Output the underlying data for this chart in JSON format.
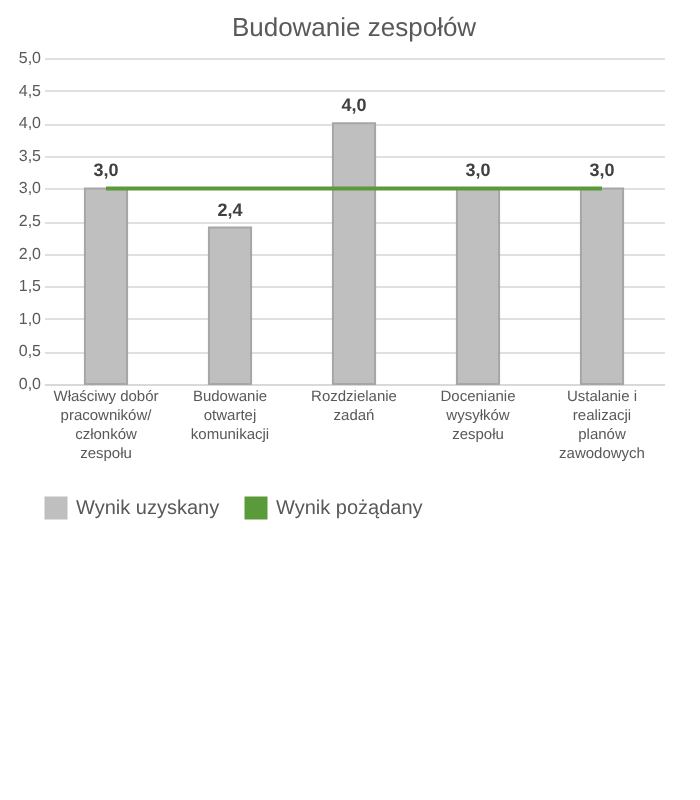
{
  "chart_data": {
    "type": "bar",
    "title": "Budowanie zespołów",
    "categories": [
      "Właściwy dobór pracowników/ członków zespołu",
      "Budowanie otwartej komunikacji",
      "Rozdzielanie zadań",
      "Docenianie wysyłków zespołu",
      "Ustalanie i realizacji planów zawodowych"
    ],
    "series": [
      {
        "name": "Wynik uzyskany",
        "color": "#bfbfbf",
        "values": [
          3.0,
          2.4,
          4.0,
          3.0,
          3.0
        ],
        "value_labels": [
          "3,0",
          "2,4",
          "4,0",
          "3,0",
          "3,0"
        ]
      },
      {
        "name": "Wynik pożądany",
        "type": "line",
        "color": "#5b9a3a",
        "values": [
          3.0,
          3.0,
          3.0,
          3.0,
          3.0
        ]
      }
    ],
    "ylim": [
      0,
      5
    ],
    "yticks": [
      {
        "value": 0,
        "label": "0,0"
      },
      {
        "value": 0.5,
        "label": "0,5"
      },
      {
        "value": 1,
        "label": "1,0"
      },
      {
        "value": 1.5,
        "label": "1,5"
      },
      {
        "value": 2,
        "label": "2,0"
      },
      {
        "value": 2.5,
        "label": "2,5"
      },
      {
        "value": 3,
        "label": "3,0"
      },
      {
        "value": 3.5,
        "label": "3,5"
      },
      {
        "value": 4,
        "label": "4,0"
      },
      {
        "value": 4.5,
        "label": "4,5"
      },
      {
        "value": 5,
        "label": "5,0"
      }
    ],
    "grid": "y",
    "legend": "bottom"
  }
}
